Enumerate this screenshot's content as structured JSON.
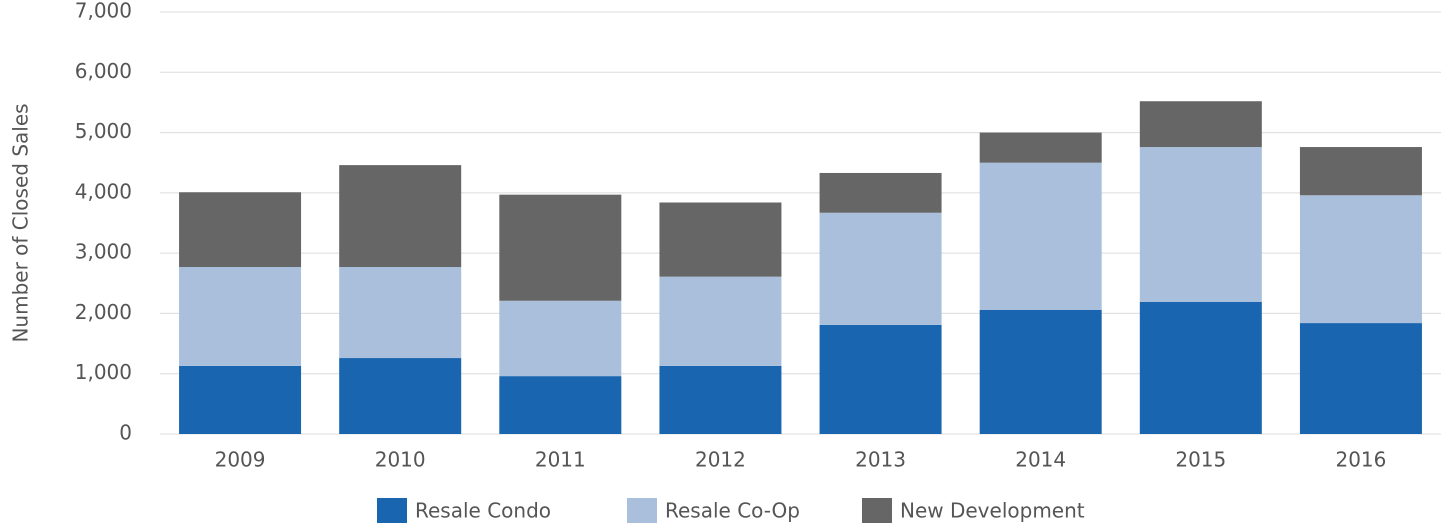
{
  "chart_data": {
    "type": "stacked_bar",
    "y_label": "Number of Closed Sales",
    "categories": [
      "2009",
      "2010",
      "2011",
      "2012",
      "2013",
      "2014",
      "2015",
      "2016"
    ],
    "series": [
      {
        "name": "Resale Condo",
        "color": "#1a65b0",
        "values": [
          1130,
          1260,
          960,
          1130,
          1810,
          2060,
          2190,
          1840
        ]
      },
      {
        "name": "Resale Co-Op",
        "color": "#a9bfdb",
        "values": [
          1640,
          1510,
          1250,
          1480,
          1860,
          2440,
          2570,
          2120
        ]
      },
      {
        "name": "New Development",
        "color": "#666666",
        "values": [
          1240,
          1690,
          1760,
          1230,
          660,
          500,
          760,
          800
        ]
      }
    ],
    "ylim": [
      0,
      7000
    ],
    "yticks": [
      0,
      {
        "value": 1000,
        "label": "1,000"
      },
      {
        "value": 2000,
        "label": "2,000"
      },
      {
        "value": 3000,
        "label": "3,000"
      },
      {
        "value": 4000,
        "label": "4,000"
      },
      {
        "value": 5000,
        "label": "5,000"
      },
      {
        "value": 6000,
        "label": "6,000"
      },
      {
        "value": 7000,
        "label": "7,000"
      }
    ],
    "grid": true,
    "legend": "bottom"
  }
}
